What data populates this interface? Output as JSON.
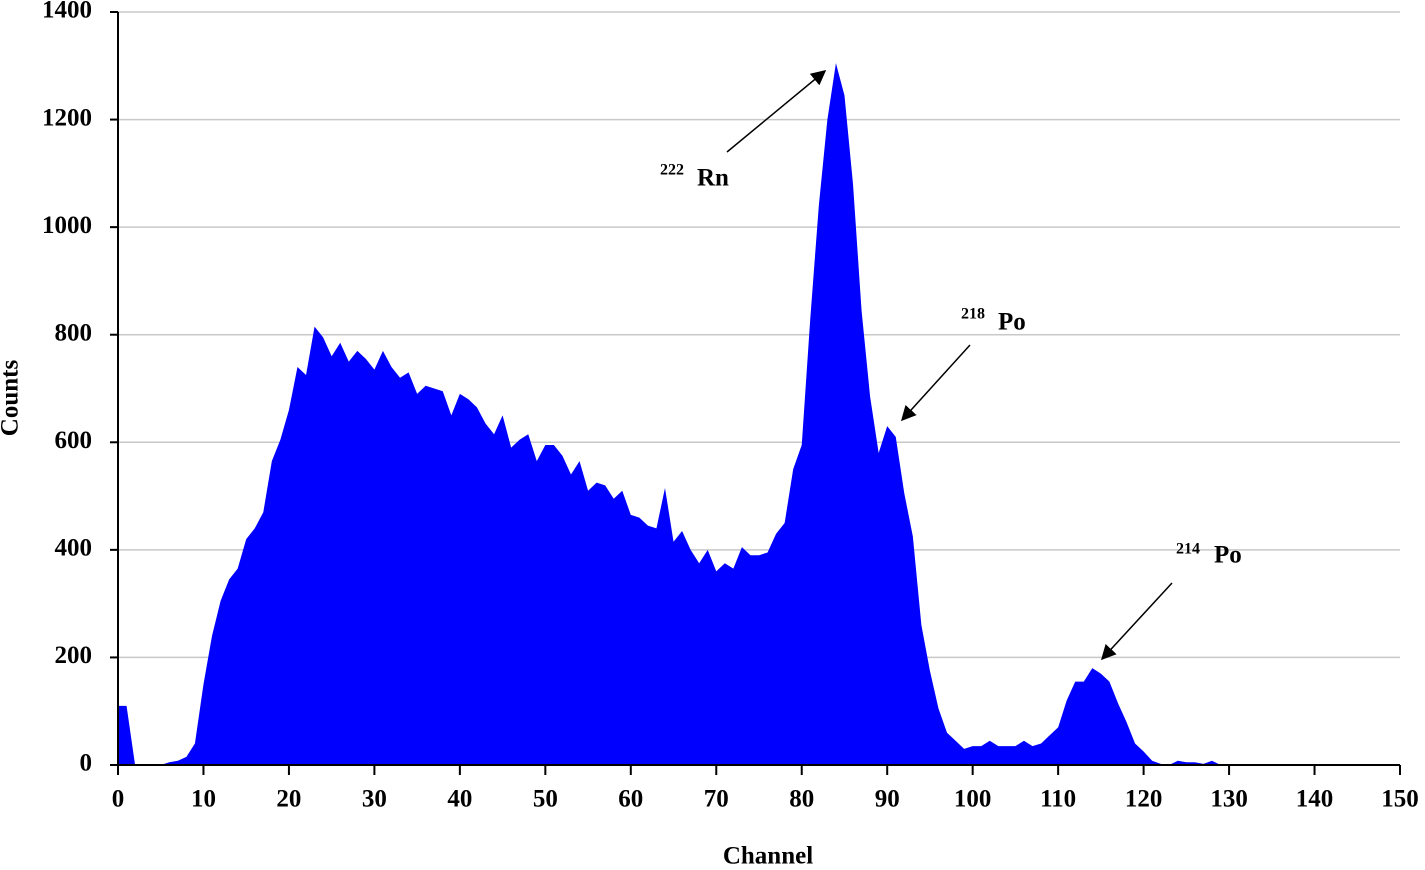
{
  "chart_data": {
    "type": "area",
    "xlabel": "Channel",
    "ylabel": "Counts",
    "color": "#0000ff",
    "grid": true,
    "xlim": [
      0,
      150
    ],
    "ylim": [
      0,
      1400
    ],
    "xticks": [
      0,
      10,
      20,
      30,
      40,
      50,
      60,
      70,
      80,
      90,
      100,
      110,
      120,
      130,
      140,
      150
    ],
    "yticks": [
      0,
      200,
      400,
      600,
      800,
      1000,
      1200,
      1400
    ],
    "x": [
      0,
      1,
      2,
      3,
      4,
      5,
      6,
      7,
      8,
      9,
      10,
      11,
      12,
      13,
      14,
      15,
      16,
      17,
      18,
      19,
      20,
      21,
      22,
      23,
      24,
      25,
      26,
      27,
      28,
      29,
      30,
      31,
      32,
      33,
      34,
      35,
      36,
      37,
      38,
      39,
      40,
      41,
      42,
      43,
      44,
      45,
      46,
      47,
      48,
      49,
      50,
      51,
      52,
      53,
      54,
      55,
      56,
      57,
      58,
      59,
      60,
      61,
      62,
      63,
      64,
      65,
      66,
      67,
      68,
      69,
      70,
      71,
      72,
      73,
      74,
      75,
      76,
      77,
      78,
      79,
      80,
      81,
      82,
      83,
      84,
      85,
      86,
      87,
      88,
      89,
      90,
      91,
      92,
      93,
      94,
      95,
      96,
      97,
      98,
      99,
      100,
      101,
      102,
      103,
      104,
      105,
      106,
      107,
      108,
      109,
      110,
      111,
      112,
      113,
      114,
      115,
      116,
      117,
      118,
      119,
      120,
      121,
      122,
      123,
      124,
      125,
      126,
      127,
      128,
      129,
      130,
      131,
      132,
      133,
      134,
      135,
      136,
      137,
      138,
      139,
      140,
      141,
      142,
      143,
      144,
      145,
      146,
      147,
      148,
      149,
      150
    ],
    "values": [
      110,
      110,
      0,
      0,
      0,
      0,
      5,
      8,
      15,
      40,
      150,
      240,
      305,
      345,
      365,
      420,
      440,
      470,
      565,
      605,
      660,
      740,
      725,
      815,
      795,
      760,
      785,
      750,
      770,
      755,
      735,
      770,
      740,
      720,
      730,
      690,
      705,
      700,
      695,
      650,
      690,
      680,
      665,
      635,
      615,
      650,
      590,
      605,
      615,
      565,
      595,
      595,
      575,
      540,
      565,
      510,
      525,
      520,
      495,
      510,
      465,
      460,
      445,
      440,
      515,
      415,
      435,
      400,
      375,
      400,
      360,
      375,
      365,
      405,
      390,
      390,
      395,
      430,
      450,
      550,
      595,
      830,
      1040,
      1200,
      1305,
      1245,
      1080,
      845,
      685,
      580,
      630,
      610,
      505,
      425,
      260,
      175,
      105,
      60,
      45,
      30,
      35,
      35,
      45,
      35,
      35,
      35,
      45,
      35,
      40,
      55,
      70,
      120,
      155,
      155,
      180,
      170,
      155,
      115,
      80,
      40,
      25,
      8,
      2,
      0,
      8,
      5,
      5,
      2,
      8,
      0,
      0,
      0,
      0,
      0,
      0,
      0,
      0,
      0,
      0,
      0,
      0,
      0,
      0,
      0,
      0,
      0,
      0,
      0,
      0,
      0,
      0
    ],
    "annotations": [
      {
        "sup": "222",
        "text": "Rn"
      },
      {
        "sup": "218",
        "text": "Po"
      },
      {
        "sup": "214",
        "text": "Po"
      }
    ]
  }
}
